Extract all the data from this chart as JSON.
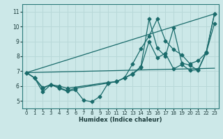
{
  "xlabel": "Humidex (Indice chaleur)",
  "xlim": [
    -0.5,
    23.5
  ],
  "ylim": [
    4.5,
    11.5
  ],
  "xticks": [
    0,
    1,
    2,
    3,
    4,
    5,
    6,
    7,
    8,
    9,
    10,
    11,
    12,
    13,
    14,
    15,
    16,
    17,
    18,
    19,
    20,
    21,
    22,
    23
  ],
  "yticks": [
    5,
    6,
    7,
    8,
    9,
    10,
    11
  ],
  "bg_color": "#cce8e8",
  "line_color": "#1a6b6b",
  "grid_color": "#b8d8d8",
  "series": [
    {
      "x": [
        0,
        1,
        2,
        3,
        4,
        5,
        6,
        7,
        8,
        9,
        10,
        11,
        12,
        13,
        14,
        15,
        16,
        17,
        18,
        19,
        20,
        21,
        22,
        23
      ],
      "y": [
        6.9,
        6.55,
        5.6,
        6.1,
        5.85,
        5.65,
        5.75,
        5.05,
        4.95,
        5.3,
        6.2,
        6.3,
        6.55,
        7.5,
        8.5,
        9.35,
        10.5,
        9.05,
        8.45,
        8.1,
        7.5,
        7.7,
        8.25,
        10.2
      ],
      "marker": "D",
      "markersize": 2.5
    },
    {
      "x": [
        0,
        1,
        2,
        3,
        4,
        5,
        6,
        10,
        11,
        12,
        13,
        14,
        15,
        16,
        17,
        18,
        19,
        20,
        21,
        22,
        23
      ],
      "y": [
        6.9,
        6.55,
        5.85,
        6.1,
        5.9,
        5.7,
        5.85,
        6.2,
        6.3,
        6.55,
        6.85,
        7.3,
        10.5,
        8.55,
        8.0,
        9.9,
        7.55,
        7.4,
        7.05,
        8.25,
        10.85
      ],
      "marker": "D",
      "markersize": 2.5
    },
    {
      "x": [
        0,
        1,
        2,
        3,
        4,
        5,
        10,
        11,
        12,
        13,
        14,
        15,
        16,
        17,
        18,
        19,
        20,
        21,
        22,
        23
      ],
      "y": [
        6.9,
        6.55,
        5.9,
        6.1,
        6.0,
        5.85,
        6.25,
        6.3,
        6.55,
        6.8,
        7.25,
        9.0,
        7.9,
        8.2,
        7.15,
        7.45,
        7.05,
        7.1,
        8.3,
        10.85
      ],
      "marker": "D",
      "markersize": 2.5
    },
    {
      "x": [
        0,
        23
      ],
      "y": [
        6.9,
        10.85
      ],
      "marker": "none",
      "markersize": 0
    },
    {
      "x": [
        0,
        23
      ],
      "y": [
        6.9,
        7.2
      ],
      "marker": "none",
      "markersize": 0
    }
  ]
}
